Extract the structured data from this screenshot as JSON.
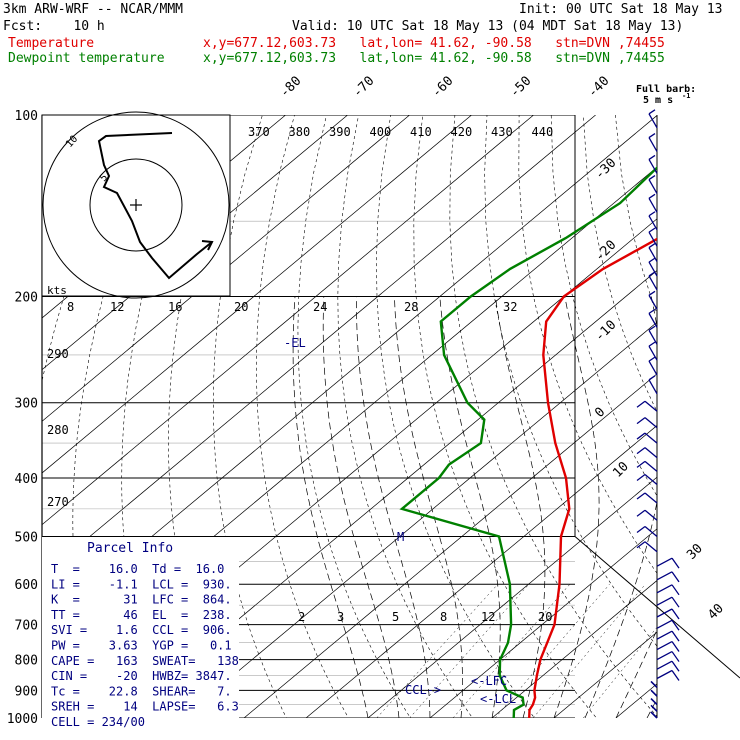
{
  "header": {
    "title": "3km ARW-WRF -- NCAR/MMM",
    "init": "Init: 00 UTC Sat 18 May 13",
    "fcst": "Fcst:    10 h",
    "valid": "Valid: 10 UTC Sat 18 May 13 (04 MDT Sat 18 May 13)",
    "temp_label": "Temperature",
    "dew_label": "Dewpoint temperature",
    "loc_info": "x,y=677.12,603.73   lat,lon= 41.62, -90.58   stn=DVN ,74455"
  },
  "colors": {
    "temperature": "#e00000",
    "dewpoint": "#008000",
    "wind": "#000080",
    "parcel": "#000080"
  },
  "chart_data": {
    "type": "skew-t log-p sounding",
    "pressure_levels": [
      "100",
      "200",
      "300",
      "400",
      "500",
      "600",
      "700",
      "800",
      "900",
      "1000"
    ],
    "isotherm_labels": [
      "-80",
      "-70",
      "-60",
      "-50",
      "-40",
      "-30",
      "-20",
      "-10",
      "0",
      "10",
      "30",
      "40"
    ],
    "theta_labels": [
      "370",
      "380",
      "390",
      "400",
      "410",
      "420",
      "430",
      "440"
    ],
    "dry_adiabat_labels": [
      "290",
      "280",
      "270"
    ],
    "mixing_ratio_labels": [
      "2",
      "3",
      "5",
      "8",
      "12",
      "20"
    ],
    "temperature": [
      [
        1000,
        16.0
      ],
      [
        970,
        14.5
      ],
      [
        950,
        14.0
      ],
      [
        925,
        13.0
      ],
      [
        900,
        11.5
      ],
      [
        850,
        9.0
      ],
      [
        800,
        6.5
      ],
      [
        700,
        2.0
      ],
      [
        600,
        -5.0
      ],
      [
        500,
        -14.0
      ],
      [
        450,
        -18.0
      ],
      [
        400,
        -24.5
      ],
      [
        350,
        -33.0
      ],
      [
        300,
        -42.0
      ],
      [
        250,
        -52.0
      ],
      [
        220,
        -58.0
      ],
      [
        200,
        -60.0
      ],
      [
        180,
        -59.0
      ],
      [
        160,
        -56.0
      ],
      [
        140,
        -52.0
      ],
      [
        120,
        -47.0
      ],
      [
        100,
        -41.0
      ]
    ],
    "dewpoint": [
      [
        1000,
        13.5
      ],
      [
        970,
        12.0
      ],
      [
        950,
        12.5
      ],
      [
        925,
        11.0
      ],
      [
        900,
        7.0
      ],
      [
        850,
        3.0
      ],
      [
        800,
        0.0
      ],
      [
        750,
        -2.0
      ],
      [
        700,
        -5.0
      ],
      [
        600,
        -13.0
      ],
      [
        500,
        -24.0
      ],
      [
        450,
        -45.0
      ],
      [
        400,
        -45.0
      ],
      [
        380,
        -46.0
      ],
      [
        350,
        -45.0
      ],
      [
        320,
        -49.0
      ],
      [
        300,
        -55.0
      ],
      [
        250,
        -68.0
      ],
      [
        220,
        -75.0
      ],
      [
        200,
        -75.0
      ],
      [
        180,
        -74.0
      ],
      [
        160,
        -71.0
      ],
      [
        140,
        -69.0
      ],
      [
        120,
        -70.0
      ],
      [
        100,
        -72.0
      ]
    ],
    "markers": {
      "lfc": "LFC",
      "lcl": "LCL",
      "ccl": "CCL",
      "el": "EL",
      "m": "M"
    },
    "hodograph": {
      "unit": "kts",
      "ring_labels": [
        "10",
        "5"
      ],
      "scale_labels": [
        "8",
        "12",
        "16",
        "20",
        "24",
        "28",
        "32"
      ]
    },
    "wind_legend": [
      "Full barb:",
      "5 m s"
    ],
    "wind_unit_exp": "-1"
  },
  "parcel_info": {
    "title": "Parcel Info",
    "lines": [
      "T  =    16.0  Td =  16.0",
      "LI =    -1.1  LCL =  930.",
      "K  =      31  LFC =  864.",
      "TT =      46  EL  =  238.",
      "SVI =    1.6  CCL =  906.",
      "PW =    3.63  YGP =   0.1",
      "CAPE =   163  SWEAT=   138",
      "CIN =    -20  HWBZ= 3847.",
      "Tc =    22.8  SHEAR=   7.",
      "SREH =    14  LAPSE=   6.3",
      "CELL = 234/00"
    ]
  }
}
